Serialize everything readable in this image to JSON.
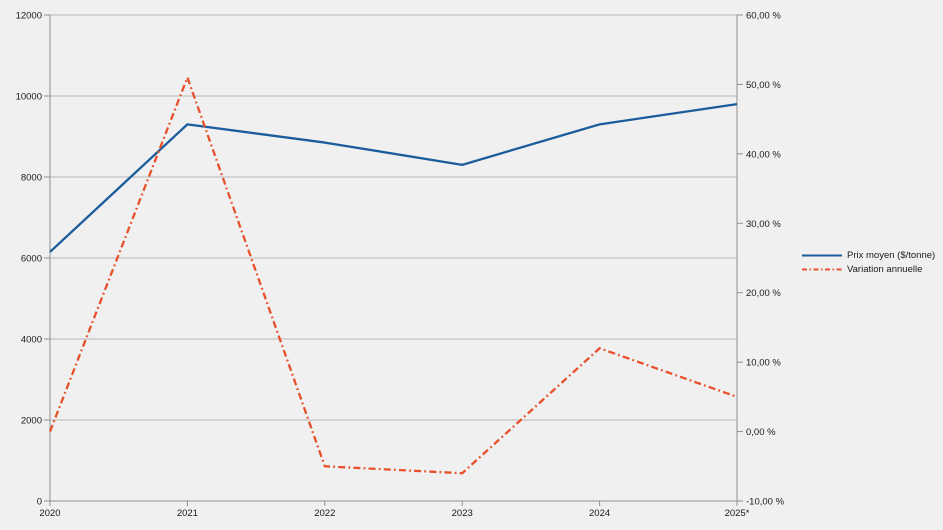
{
  "chart_data": {
    "type": "line",
    "title": "",
    "categories": [
      "2020",
      "2021",
      "2022",
      "2023",
      "2024",
      "2025*"
    ],
    "series": [
      {
        "name": "Prix moyen ($/tonne)",
        "axis": "left",
        "style": "solid",
        "color": "#1b5c9b",
        "values": [
          6150,
          9300,
          8850,
          8300,
          9300,
          9800
        ]
      },
      {
        "name": "Variation annuelle",
        "axis": "right",
        "style": "dashdot",
        "color": "#e8502b",
        "values": [
          0,
          51,
          -5,
          -6,
          12,
          5
        ]
      }
    ],
    "left_axis": {
      "min": 0,
      "max": 12000,
      "tick": 2000,
      "labels": [
        "0",
        "2000",
        "4000",
        "6000",
        "8000",
        "10000",
        "12000"
      ]
    },
    "right_axis": {
      "min": -10,
      "max": 60,
      "tick": 10,
      "labels": [
        "-10,00 %",
        "0,00 %",
        "10,00 %",
        "20,00 %",
        "30,00 %",
        "40,00 %",
        "50,00 %",
        "60,00 %"
      ]
    },
    "grid": "horizontal",
    "legend_position": "right"
  },
  "colors": {
    "background": "#f0f0f0",
    "gridline": "#b9b9b9",
    "axis": "#8f8f8f",
    "text": "#1a1a1a"
  }
}
